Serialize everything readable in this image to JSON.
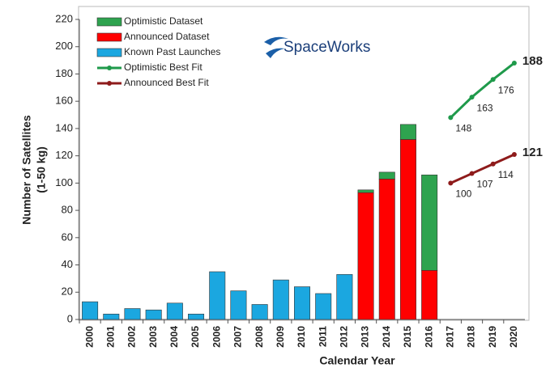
{
  "chart_data": {
    "type": "bar",
    "stacked": true,
    "logo": "SpaceWorks",
    "xlabel": "Calendar Year",
    "ylabel": [
      "Number of Satellites",
      "(1-50 kg)"
    ],
    "categories": [
      "2000",
      "2001",
      "2002",
      "2003",
      "2004",
      "2005",
      "2006",
      "2007",
      "2008",
      "2009",
      "2010",
      "2011",
      "2012",
      "2013",
      "2014",
      "2015",
      "2016",
      "2017",
      "2018",
      "2019",
      "2020"
    ],
    "ylim": [
      0,
      220
    ],
    "yticks": [
      0,
      20,
      40,
      60,
      80,
      100,
      120,
      140,
      160,
      180,
      200,
      220
    ],
    "grid": false,
    "legend": "upper left",
    "series": [
      {
        "name": "Optimistic Dataset",
        "type": "bar",
        "color": "#2ea34f",
        "values": [
          null,
          null,
          null,
          null,
          null,
          null,
          null,
          null,
          null,
          null,
          null,
          null,
          null,
          2,
          5,
          11,
          70,
          null,
          null,
          null,
          null
        ]
      },
      {
        "name": "Announced Dataset",
        "type": "bar",
        "color": "#ff0000",
        "values": [
          null,
          null,
          null,
          null,
          null,
          null,
          null,
          null,
          null,
          null,
          null,
          null,
          null,
          93,
          103,
          132,
          36,
          null,
          null,
          null,
          null
        ]
      },
      {
        "name": "Known Past Launches",
        "type": "bar",
        "color": "#1ba7e0",
        "values": [
          13,
          4,
          8,
          7,
          12,
          4,
          35,
          21,
          11,
          29,
          24,
          19,
          33,
          null,
          null,
          null,
          null,
          null,
          null,
          null,
          null
        ]
      },
      {
        "name": "Optimistic Best Fit",
        "type": "line",
        "color": "#1f9a4b",
        "values": [
          null,
          null,
          null,
          null,
          null,
          null,
          null,
          null,
          null,
          null,
          null,
          null,
          null,
          null,
          null,
          null,
          null,
          148,
          163,
          176,
          188
        ]
      },
      {
        "name": "Announced Best Fit",
        "type": "line",
        "color": "#8e1b1b",
        "values": [
          null,
          null,
          null,
          null,
          null,
          null,
          null,
          null,
          null,
          null,
          null,
          null,
          null,
          null,
          null,
          null,
          null,
          100,
          107,
          114,
          121
        ]
      }
    ]
  }
}
